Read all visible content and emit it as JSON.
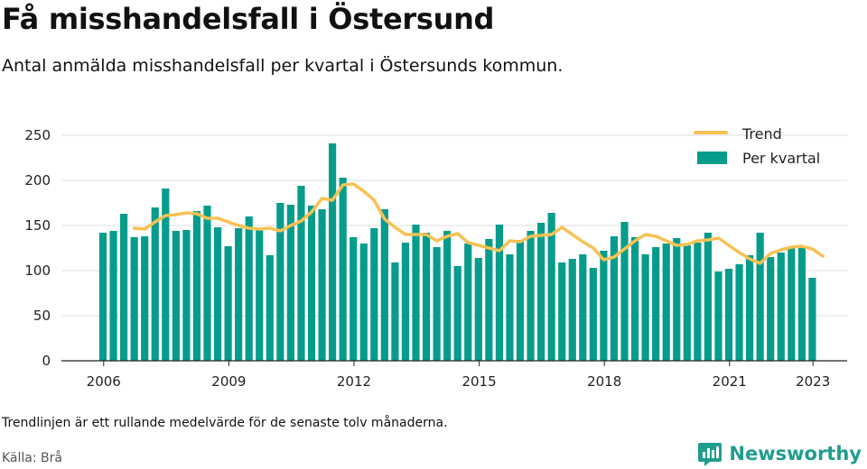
{
  "title": "Få misshandelsfall i Östersund",
  "subtitle": "Antal anmälda misshandelsfall per kvartal i Östersunds kommun.",
  "note": "Trendlinjen är ett rullande medelvärde för de senaste tolv månaderna.",
  "source": "Källa: Brå",
  "brand": {
    "name": "Newsworthy",
    "icon": "newsworthy-logo-icon"
  },
  "colors": {
    "bars": "#069c8c",
    "trend": "#f6c253",
    "grid": "#dddddd",
    "brand": "#1f9d8f"
  },
  "chart_data": {
    "type": "bar",
    "y_ticks": [
      "0",
      "50",
      "100",
      "150",
      "200",
      "250"
    ],
    "ylim": [
      0,
      250
    ],
    "grid": true,
    "legend_position": "top-right",
    "x_ticks": [
      {
        "label": "2006",
        "at": 2006.125
      },
      {
        "label": "2009",
        "at": 2009.125
      },
      {
        "label": "2012",
        "at": 2012.125
      },
      {
        "label": "2015",
        "at": 2015.125
      },
      {
        "label": "2018",
        "at": 2018.125
      },
      {
        "label": "2021",
        "at": 2021.125
      },
      {
        "label": "2023",
        "at": 2023.125
      }
    ],
    "series": [
      {
        "name": "Per kvartal",
        "kind": "bar",
        "start": "2006 Q1",
        "values": [
          142,
          144,
          163,
          137,
          138,
          170,
          191,
          144,
          145,
          166,
          172,
          148,
          127,
          147,
          160,
          146,
          117,
          175,
          173,
          194,
          172,
          168,
          241,
          203,
          137,
          130,
          147,
          168,
          109,
          131,
          151,
          142,
          126,
          144,
          105,
          130,
          114,
          135,
          151,
          118,
          134,
          144,
          153,
          164,
          109,
          113,
          118,
          103,
          122,
          138,
          154,
          137,
          118,
          126,
          130,
          136,
          128,
          131,
          142,
          99,
          102,
          107,
          117,
          142,
          115,
          120,
          125,
          126,
          92
        ]
      },
      {
        "name": "Trend",
        "kind": "line",
        "start": "2006 Q4",
        "values": [
          147,
          146,
          154,
          161,
          162,
          164,
          163,
          158,
          158,
          154,
          150,
          147,
          146,
          147,
          144,
          150,
          155,
          165,
          180,
          178,
          195,
          196,
          188,
          178,
          157,
          148,
          140,
          140,
          140,
          133,
          138,
          141,
          131,
          128,
          125,
          122,
          133,
          132,
          138,
          139,
          140,
          148,
          140,
          132,
          125,
          112,
          115,
          124,
          133,
          140,
          138,
          133,
          128,
          129,
          133,
          134,
          136,
          128,
          120,
          113,
          108,
          119,
          123,
          126,
          127,
          124,
          116
        ]
      }
    ]
  }
}
